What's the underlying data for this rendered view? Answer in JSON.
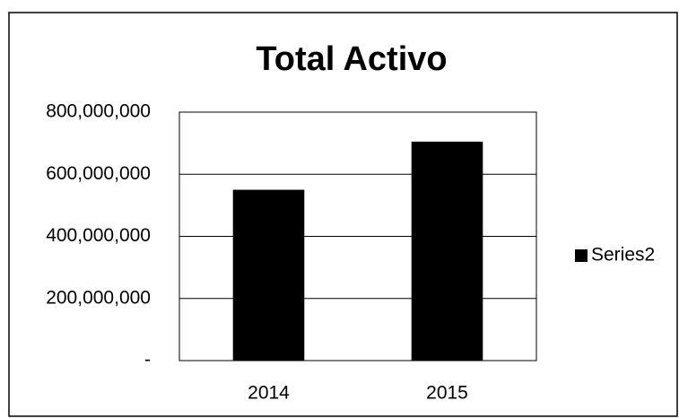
{
  "chart_data": {
    "type": "bar",
    "title": "Total Activo",
    "categories": [
      "2014",
      "2015"
    ],
    "series": [
      {
        "name": "Series2",
        "color": "#000000",
        "values": [
          550000000,
          705000000
        ]
      }
    ],
    "ylim": [
      0,
      800000000
    ],
    "yticks": [
      {
        "value": 0,
        "label": "-"
      },
      {
        "value": 200000000,
        "label": "200,000,000"
      },
      {
        "value": 400000000,
        "label": "400,000,000"
      },
      {
        "value": 600000000,
        "label": "600,000,000"
      },
      {
        "value": 800000000,
        "label": "800,000,000"
      }
    ],
    "grid": true,
    "legend": "right"
  }
}
